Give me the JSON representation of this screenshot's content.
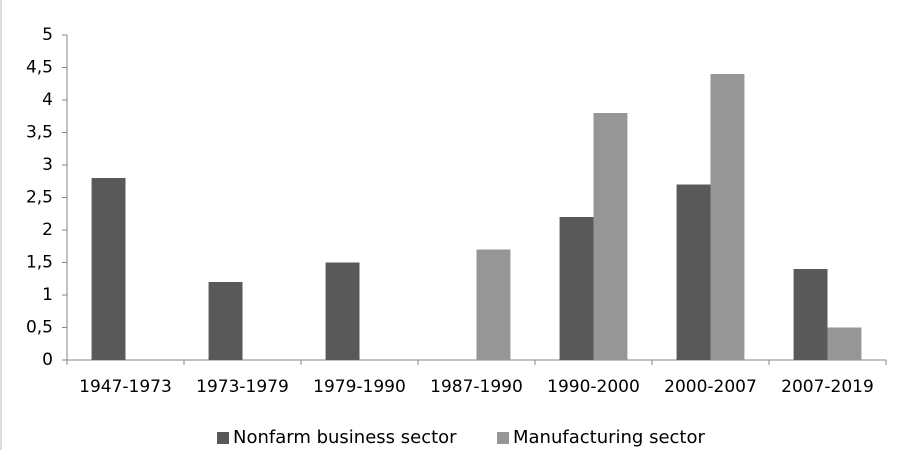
{
  "chart_data": {
    "type": "bar",
    "categories": [
      "1947-1973",
      "1973-1979",
      "1979-1990",
      "1987-1990",
      "1990-2000",
      "2000-2007",
      "2007-2019"
    ],
    "series": [
      {
        "name": "Nonfarm business sector",
        "color": "#595959",
        "values": [
          2.8,
          1.2,
          1.5,
          null,
          2.2,
          2.7,
          1.4
        ]
      },
      {
        "name": "Manufacturing sector",
        "color": "#969696",
        "values": [
          null,
          null,
          null,
          1.7,
          3.8,
          4.4,
          0.5
        ]
      }
    ],
    "ylim": [
      0,
      5
    ],
    "yticks": [
      0,
      {
        "value": 0.5,
        "label": "0,5"
      },
      1,
      {
        "value": 1.5,
        "label": "1,5"
      },
      2,
      {
        "value": 2.5,
        "label": "2,5"
      },
      3,
      {
        "value": 3.5,
        "label": "3,5"
      },
      4,
      {
        "value": 4.5,
        "label": "4,5"
      },
      5
    ],
    "legend": "bottom"
  }
}
